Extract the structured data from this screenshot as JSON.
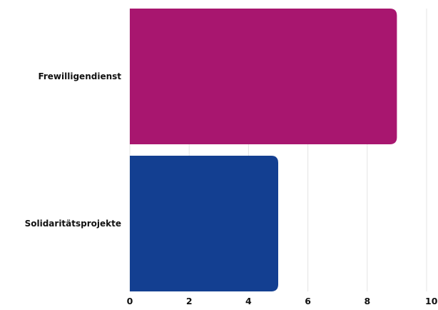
{
  "chart_data": {
    "type": "bar",
    "orientation": "horizontal",
    "categories": [
      "Frewilligendienst",
      "Solidaritätsprojekte"
    ],
    "values": [
      9,
      5
    ],
    "colors": [
      "#a8166f",
      "#133f91"
    ],
    "xlim": [
      0,
      10
    ],
    "xticks": [
      "0",
      "2",
      "4",
      "6",
      "8",
      "10"
    ],
    "grid": true,
    "legend": "none"
  }
}
